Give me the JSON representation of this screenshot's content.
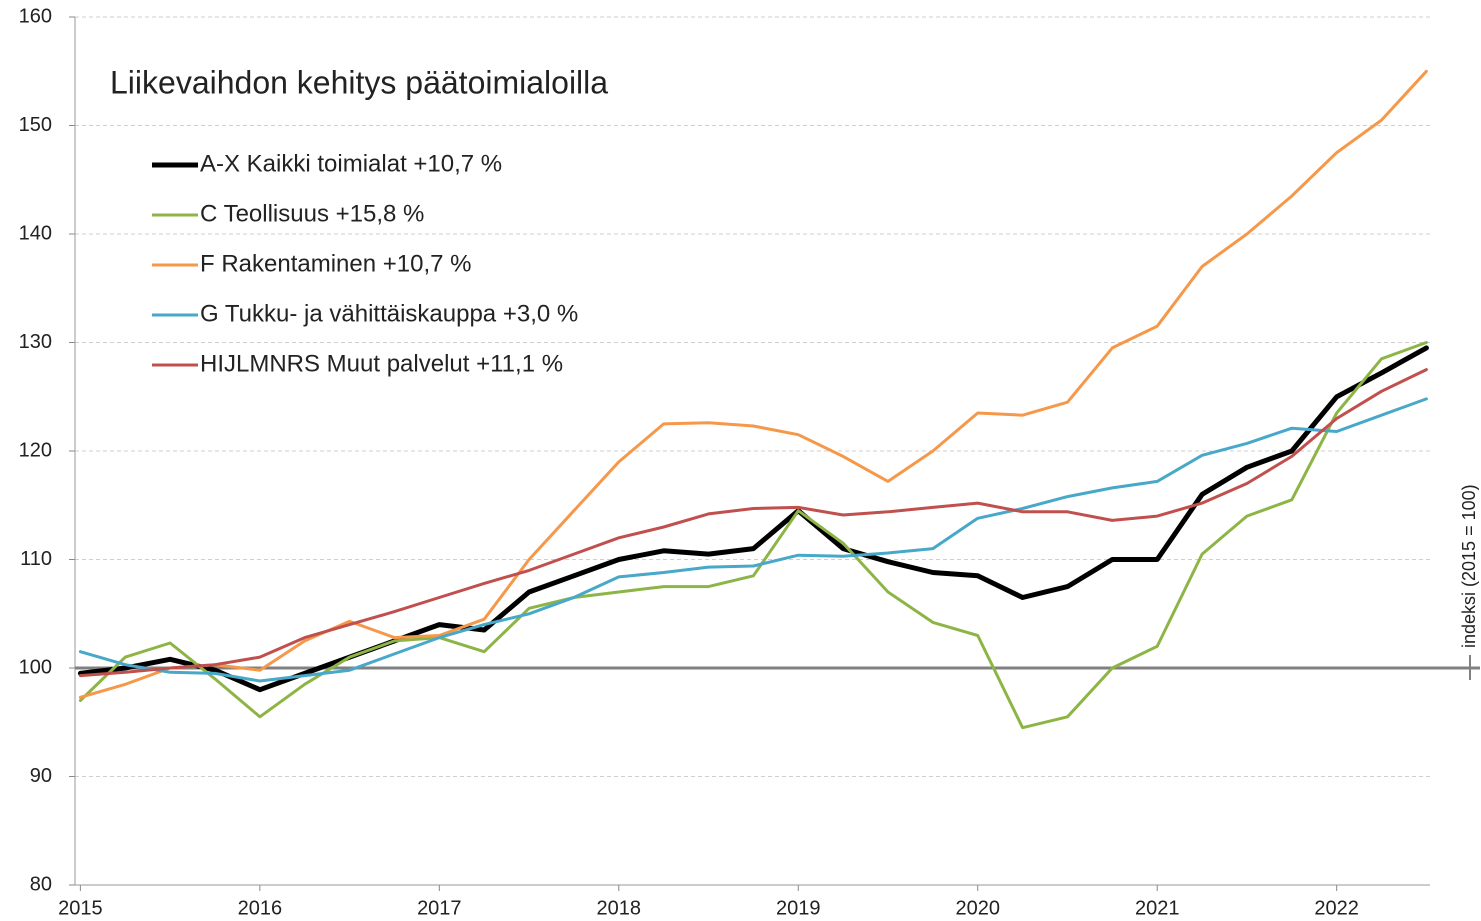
{
  "chart_data": {
    "type": "line",
    "title": "Liikevaihdon kehitys päätoimialoilla",
    "y_label": "indeksi (2015 = 100)",
    "x": [
      2015,
      2015.25,
      2015.5,
      2015.75,
      2016,
      2016.25,
      2016.5,
      2016.75,
      2017,
      2017.25,
      2017.5,
      2017.75,
      2018,
      2018.25,
      2018.5,
      2018.75,
      2019,
      2019.25,
      2019.5,
      2019.75,
      2020,
      2020.25,
      2020.5,
      2020.75,
      2021,
      2021.25,
      2021.5,
      2021.75,
      2022,
      2022.25,
      2022.5
    ],
    "xlim": [
      2014.97,
      2022.52
    ],
    "xticks": [
      2015,
      2016,
      2017,
      2018,
      2019,
      2020,
      2021,
      2022
    ],
    "ylim": [
      80,
      160
    ],
    "yticks": [
      80,
      90,
      100,
      110,
      120,
      130,
      140,
      150,
      160
    ],
    "grid": true,
    "reference_line": 100,
    "legend": "upper-left",
    "series": [
      {
        "name": "A-X Kaikki toimialat +10,7 %",
        "color": "#000000",
        "width": 5,
        "values": [
          99.5,
          100,
          100.8,
          99.8,
          98,
          99.5,
          101,
          102.5,
          104,
          103.5,
          107,
          108.5,
          110,
          110.8,
          110.5,
          111,
          114.5,
          111,
          109.8,
          108.8,
          108.5,
          106.5,
          107.5,
          110,
          110,
          116,
          118.5,
          120,
          125,
          127.2,
          129.5
        ]
      },
      {
        "name": "C Teollisuus +15,8 %",
        "color": "#8db545",
        "width": 3,
        "values": [
          97,
          101,
          102.3,
          99,
          95.5,
          98.5,
          101,
          102.5,
          102.8,
          101.5,
          105.5,
          106.5,
          107,
          107.5,
          107.5,
          108.5,
          114.5,
          111.5,
          107,
          104.2,
          103,
          94.5,
          95.5,
          100,
          102,
          110.5,
          114,
          115.5,
          123.5,
          128.5,
          130
        ]
      },
      {
        "name": "F Rakentaminen +10,7 %",
        "color": "#f5984a",
        "width": 3,
        "values": [
          97.3,
          98.5,
          100,
          100.3,
          99.8,
          102.5,
          104.3,
          102.8,
          103,
          104.5,
          110,
          114.5,
          119,
          122.5,
          122.6,
          122.3,
          121.5,
          119.5,
          117.2,
          120,
          123.5,
          123.3,
          124.5,
          129.5,
          131.5,
          137,
          140,
          143.5,
          147.5,
          150.5,
          155
        ]
      },
      {
        "name": "G Tukku- ja vähittäiskauppa +3,0 %",
        "color": "#47a8c9",
        "width": 3,
        "values": [
          101.5,
          100.3,
          99.6,
          99.5,
          98.8,
          99.3,
          99.8,
          101.3,
          102.8,
          104,
          105,
          106.5,
          108.4,
          108.8,
          109.3,
          109.4,
          110.4,
          110.3,
          110.6,
          111,
          113.8,
          114.7,
          115.8,
          116.6,
          117.2,
          119.6,
          120.7,
          122.1,
          121.8,
          123.3,
          124.8
        ]
      },
      {
        "name": "HIJLMNRS Muut palvelut +11,1 %",
        "color": "#c0504d",
        "width": 3,
        "values": [
          99.3,
          99.6,
          100,
          100.3,
          101,
          102.8,
          104,
          105.2,
          106.5,
          107.8,
          109,
          110.5,
          112,
          113,
          114.2,
          114.7,
          114.8,
          114.1,
          114.4,
          114.8,
          115.2,
          114.4,
          114.4,
          113.6,
          114,
          115.2,
          117,
          119.5,
          123,
          125.5,
          127.5
        ]
      }
    ]
  }
}
